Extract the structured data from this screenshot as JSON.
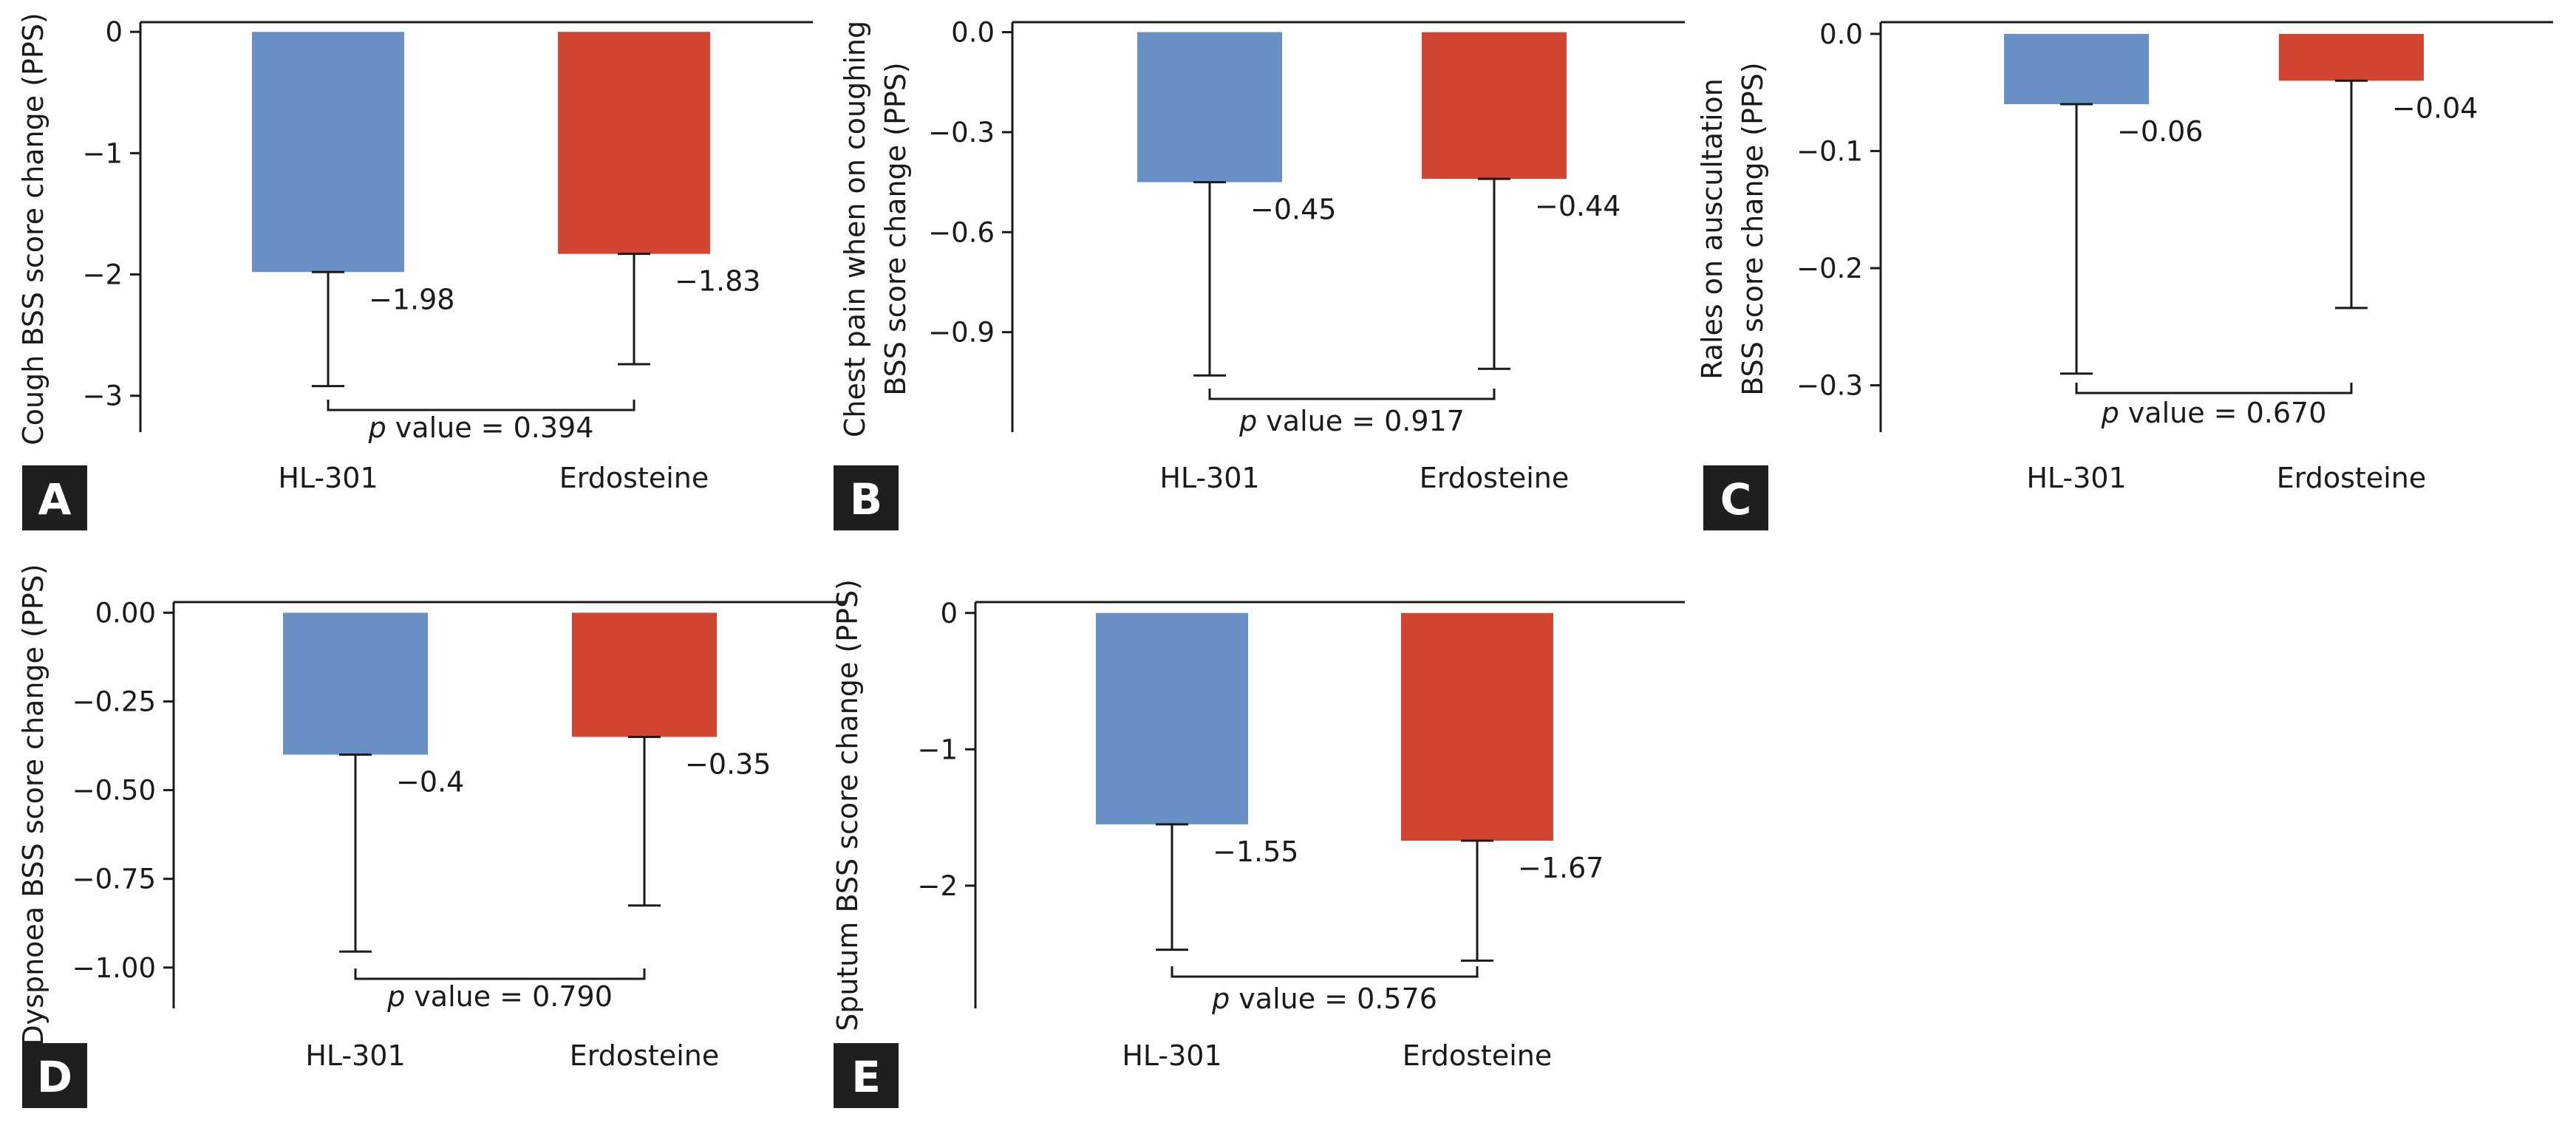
{
  "colors": {
    "hl301": "#6890c5",
    "erdosteine": "#d24532",
    "axis": "#1a1a1a",
    "letter_bg": "#1f1f1f"
  },
  "chart_data": [
    {
      "panel": "A",
      "type": "bar",
      "categories": [
        "HL-301",
        "Erdosteine"
      ],
      "values": [
        -1.98,
        -1.83
      ],
      "value_labels": [
        "−1.98",
        "−1.83"
      ],
      "error_lower": [
        -2.92,
        -2.74
      ],
      "ylabel": "Cough BSS score change (PPS)",
      "ylim": [
        -3.3,
        0.08
      ],
      "yticks": [
        0,
        -1,
        -2,
        -3
      ],
      "ytick_labels": [
        "0",
        "−1",
        "−2",
        "−3"
      ],
      "p_label": "value = 0.394",
      "p_italic": "p"
    },
    {
      "panel": "B",
      "type": "bar",
      "categories": [
        "HL-301",
        "Erdosteine"
      ],
      "values": [
        -0.45,
        -0.44
      ],
      "value_labels": [
        "−0.45",
        "−0.44"
      ],
      "error_lower": [
        -1.03,
        -1.01
      ],
      "ylabel": "Chest pain when on coughing\nBSS score change (PPS)",
      "ylim": [
        -1.2,
        0.03
      ],
      "yticks": [
        0,
        -0.3,
        -0.6,
        -0.9
      ],
      "ytick_labels": [
        "0.0",
        "−0.3",
        "−0.6",
        "−0.9"
      ],
      "p_label": "value = 0.917",
      "p_italic": "p"
    },
    {
      "panel": "C",
      "type": "bar",
      "categories": [
        "HL-301",
        "Erdosteine"
      ],
      "values": [
        -0.06,
        -0.04
      ],
      "value_labels": [
        "−0.06",
        "−0.04"
      ],
      "error_lower": [
        -0.29,
        -0.234
      ],
      "ylabel": "Rales on auscultation\nBSS score change (PPS)",
      "ylim": [
        -0.34,
        0.01
      ],
      "yticks": [
        0,
        -0.1,
        -0.2,
        -0.3
      ],
      "ytick_labels": [
        "0.0",
        "−0.1",
        "−0.2",
        "−0.3"
      ],
      "p_label": "value = 0.670",
      "p_italic": "p"
    },
    {
      "panel": "D",
      "type": "bar",
      "categories": [
        "HL-301",
        "Erdosteine"
      ],
      "values": [
        -0.4,
        -0.35
      ],
      "value_labels": [
        "−0.4",
        "−0.35"
      ],
      "error_lower": [
        -0.955,
        -0.825
      ],
      "ylabel": "Dyspnoea BSS score change (PPS)",
      "ylim": [
        -1.115,
        0.03
      ],
      "yticks": [
        0,
        -0.25,
        -0.5,
        -0.75,
        -1.0
      ],
      "ytick_labels": [
        "0.00",
        "−0.25",
        "−0.50",
        "−0.75",
        "−1.00"
      ],
      "p_label": "value = 0.790",
      "p_italic": "p"
    },
    {
      "panel": "E",
      "type": "bar",
      "categories": [
        "HL-301",
        "Erdosteine"
      ],
      "values": [
        -1.55,
        -1.67
      ],
      "value_labels": [
        "−1.55",
        "−1.67"
      ],
      "error_lower": [
        -2.47,
        -2.55
      ],
      "ylabel": "Sputum BSS score change (PPS)",
      "ylim": [
        -2.9,
        0.08
      ],
      "yticks": [
        0,
        -1,
        -2
      ],
      "ytick_labels": [
        "0",
        "−1",
        "−2"
      ],
      "p_label": "value = 0.576",
      "p_italic": "p"
    }
  ]
}
